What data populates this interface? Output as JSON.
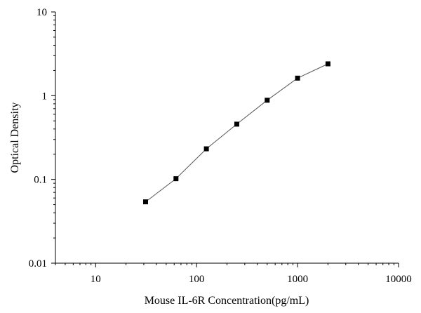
{
  "chart_data": {
    "type": "scatter",
    "title": "",
    "xlabel": "Mouse IL-6R Concentration(pg/mL)",
    "ylabel": "Optical Density",
    "x_scale": "log",
    "y_scale": "log",
    "xlim": [
      4,
      10000
    ],
    "ylim": [
      0.01,
      10
    ],
    "x_ticks": [
      10,
      100,
      1000,
      10000
    ],
    "x_tick_labels": [
      "10",
      "100",
      "1000",
      "10000"
    ],
    "y_ticks": [
      0.01,
      0.1,
      1,
      10
    ],
    "y_tick_labels": [
      "0.01",
      "0.1",
      "1",
      "10"
    ],
    "grid": false,
    "legend": "none",
    "marker": "square",
    "colors": {
      "marker": "#000000",
      "line": "#555555",
      "axis": "#000000"
    },
    "series": [
      {
        "points": [
          {
            "x": 31.25,
            "y": 0.054
          },
          {
            "x": 62.5,
            "y": 0.102
          },
          {
            "x": 125,
            "y": 0.232
          },
          {
            "x": 250,
            "y": 0.457
          },
          {
            "x": 500,
            "y": 0.882
          },
          {
            "x": 1000,
            "y": 1.62
          },
          {
            "x": 2000,
            "y": 2.4
          }
        ]
      }
    ]
  }
}
